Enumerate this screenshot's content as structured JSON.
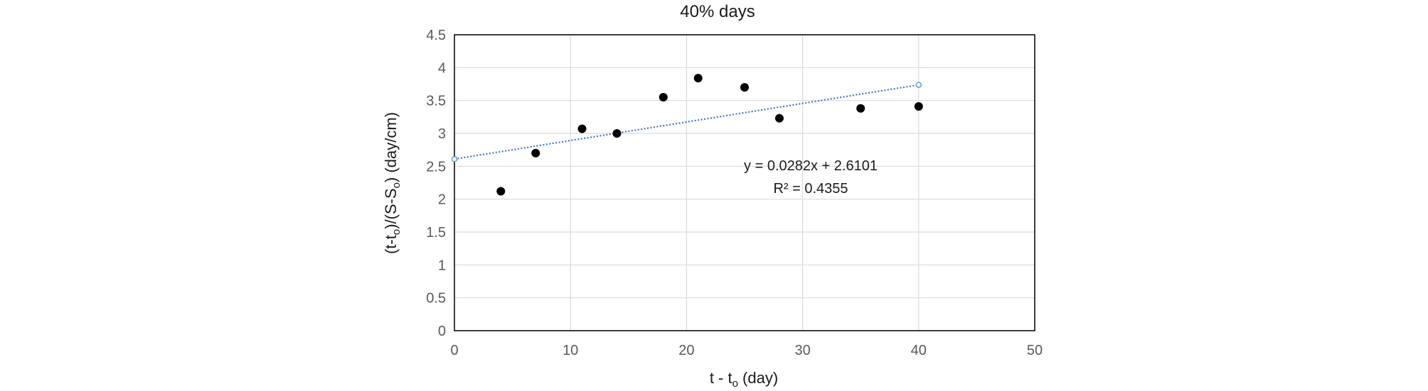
{
  "chart_data": {
    "type": "scatter",
    "title": "40% days",
    "xlabel": {
      "main": "t - t",
      "sub": "o",
      "rest": " (day)"
    },
    "ylabel": {
      "p1": "(t-t",
      "s1": "o",
      "p2": ")/(S-S",
      "s2": "o",
      "p3": ") (day/cm)"
    },
    "xlim": [
      0,
      50
    ],
    "ylim": [
      0,
      4.5
    ],
    "xticks": [
      0,
      10,
      20,
      30,
      40,
      50
    ],
    "yticks": [
      0,
      0.5,
      1,
      1.5,
      2,
      2.5,
      3,
      3.5,
      4,
      4.5
    ],
    "grid": true,
    "points": [
      {
        "x": 4,
        "y": 2.12
      },
      {
        "x": 7,
        "y": 2.7
      },
      {
        "x": 11,
        "y": 3.07
      },
      {
        "x": 14,
        "y": 3.0
      },
      {
        "x": 18,
        "y": 3.55
      },
      {
        "x": 21,
        "y": 3.84
      },
      {
        "x": 25,
        "y": 3.7
      },
      {
        "x": 28,
        "y": 3.23
      },
      {
        "x": 35,
        "y": 3.38
      },
      {
        "x": 40,
        "y": 3.41
      }
    ],
    "trendline": {
      "slope": 0.0282,
      "intercept": 2.6101,
      "x_range": [
        0,
        40
      ],
      "equation": "y = 0.0282x + 2.6101",
      "r_squared": "R² = 0.4355"
    },
    "colors": {
      "points": "#000000",
      "trendline": "#4472c4",
      "grid": "#d9d9d9",
      "frame": "#000000"
    }
  }
}
